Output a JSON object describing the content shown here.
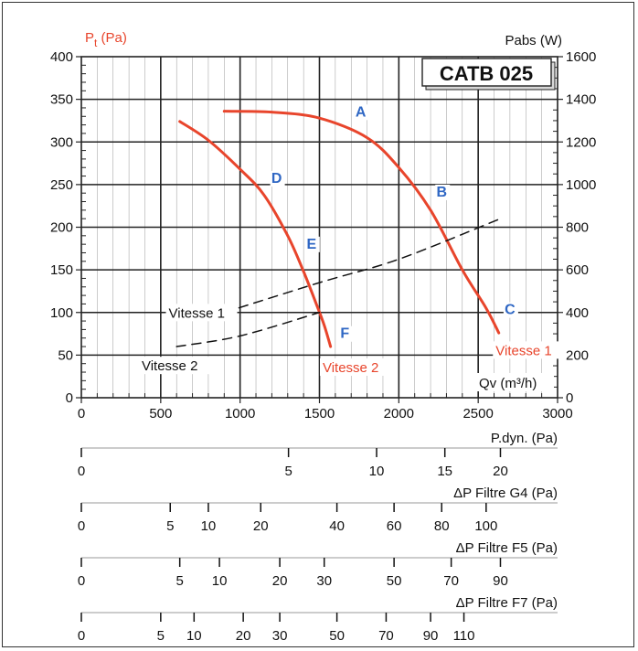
{
  "chart_data": {
    "type": "line",
    "model_label": "CATB 025",
    "left_axis": {
      "label_main": "P",
      "label_sub": "t",
      "label_unit": " (Pa)",
      "ylim": [
        0,
        400
      ],
      "ticks": [
        "0",
        "50",
        "100",
        "150",
        "200",
        "250",
        "300",
        "350",
        "400"
      ],
      "color": "#e8452c"
    },
    "right_axis": {
      "label": "Pabs (W)",
      "ylim": [
        0,
        1600
      ],
      "ticks": [
        "0",
        "200",
        "400",
        "600",
        "800",
        "1000",
        "1200",
        "1400",
        "1600"
      ]
    },
    "x_axis": {
      "label": "Qv (m³/h)",
      "xlim": [
        0,
        3000
      ],
      "ticks": [
        "0",
        "500",
        "1000",
        "1500",
        "2000",
        "2500",
        "3000"
      ]
    },
    "series": [
      {
        "name": "Vitesse 1",
        "axis": "left",
        "style": "solid",
        "color": "#e8452c",
        "x": [
          900,
          1200,
          1500,
          1800,
          2000,
          2200,
          2400,
          2550,
          2630
        ],
        "y": [
          336,
          335,
          328,
          305,
          270,
          220,
          150,
          105,
          76
        ]
      },
      {
        "name": "Vitesse 2",
        "axis": "left",
        "style": "solid",
        "color": "#e8452c",
        "x": [
          620,
          800,
          1000,
          1150,
          1300,
          1400,
          1480,
          1530,
          1570
        ],
        "y": [
          324,
          302,
          268,
          238,
          190,
          148,
          110,
          85,
          60
        ]
      },
      {
        "name": "Vitesse 1",
        "axis": "right",
        "style": "dashed",
        "color": "#111111",
        "x": [
          900,
          1500,
          2000,
          2640
        ],
        "y": [
          400,
          540,
          650,
          840
        ]
      },
      {
        "name": "Vitesse 2",
        "axis": "right",
        "style": "dashed",
        "color": "#111111",
        "x": [
          600,
          1000,
          1500
        ],
        "y": [
          240,
          290,
          400
        ]
      }
    ],
    "point_labels": [
      {
        "text": "A",
        "x": 1760,
        "y": 330
      },
      {
        "text": "B",
        "x": 2270,
        "y": 236
      },
      {
        "text": "C",
        "x": 2700,
        "y": 98
      },
      {
        "text": "D",
        "x": 1230,
        "y": 252
      },
      {
        "text": "E",
        "x": 1450,
        "y": 175
      },
      {
        "text": "F",
        "x": 1660,
        "y": 70
      }
    ],
    "curve_labels": [
      {
        "text": "Vitesse 1",
        "x": 2610,
        "y": 50,
        "color": "#e8452c"
      },
      {
        "text": "Vitesse 2",
        "x": 1520,
        "y": 30,
        "color": "#e8452c"
      },
      {
        "text": "Vitesse 1",
        "x": 550,
        "y": 94,
        "color": "#111111"
      },
      {
        "text": "Vitesse 2",
        "x": 380,
        "y": 32,
        "color": "#111111"
      }
    ],
    "label_color": "#2f67c4",
    "grid": true
  },
  "scales": [
    {
      "title": "P.dyn. (Pa)",
      "zero": "0",
      "ticks": [
        {
          "label": "5",
          "x": 1305
        },
        {
          "label": "10",
          "x": 1860
        },
        {
          "label": "15",
          "x": 2290
        },
        {
          "label": "20",
          "x": 2640
        }
      ]
    },
    {
      "title": "ΔP Filtre G4 (Pa)",
      "zero": "0",
      "ticks": [
        {
          "label": "5",
          "x": 560
        },
        {
          "label": "10",
          "x": 800
        },
        {
          "label": "20",
          "x": 1130
        },
        {
          "label": "40",
          "x": 1610
        },
        {
          "label": "60",
          "x": 1970
        },
        {
          "label": "80",
          "x": 2270
        },
        {
          "label": "100",
          "x": 2550
        }
      ]
    },
    {
      "title": "ΔP Filtre F5 (Pa)",
      "zero": "0",
      "ticks": [
        {
          "label": "5",
          "x": 620
        },
        {
          "label": "10",
          "x": 870
        },
        {
          "label": "20",
          "x": 1250
        },
        {
          "label": "30",
          "x": 1530
        },
        {
          "label": "50",
          "x": 1970
        },
        {
          "label": "70",
          "x": 2330
        },
        {
          "label": "90",
          "x": 2640
        }
      ]
    },
    {
      "title": "ΔP Filtre F7 (Pa)",
      "zero": "0",
      "ticks": [
        {
          "label": "5",
          "x": 500
        },
        {
          "label": "10",
          "x": 710
        },
        {
          "label": "20",
          "x": 1020
        },
        {
          "label": "30",
          "x": 1250
        },
        {
          "label": "50",
          "x": 1610
        },
        {
          "label": "70",
          "x": 1920
        },
        {
          "label": "90",
          "x": 2200
        },
        {
          "label": "110",
          "x": 2410
        }
      ]
    }
  ]
}
